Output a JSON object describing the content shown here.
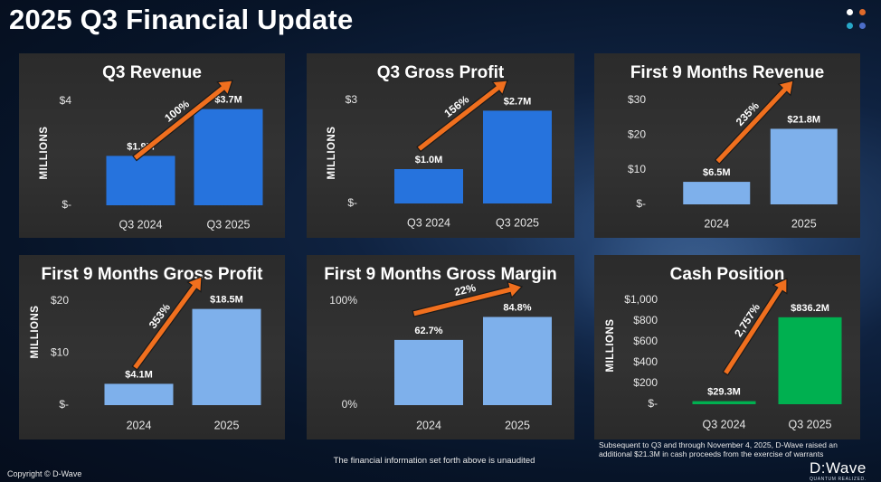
{
  "page_title": "2025 Q3 Financial Update",
  "footer_note": "The financial information set forth above is unaudited",
  "cash_note": "Subsequent to Q3 and through November 4, 2025, D-Wave raised an additional $21.3M in cash proceeds from the exercise of warrants",
  "copyright": "Copyright © D-Wave",
  "logo": {
    "main": "D:Wave",
    "tagline": "QUANTUM REALIZED."
  },
  "colors": {
    "dark_blue": "#2673DD",
    "light_blue": "#7EB0EB",
    "green": "#00B050",
    "arrow": "#F06F1E",
    "dots": [
      "#ffffff",
      "#e06a2a",
      "#27a7c8",
      "#4c6dc9",
      "#8fc3e6"
    ]
  },
  "chart_data": [
    {
      "type": "bar",
      "title": "Q3 Revenue",
      "ylabel": "MILLIONS",
      "categories": [
        "Q3 2024",
        "Q3 2025"
      ],
      "values": [
        1.9,
        3.7
      ],
      "data_labels": [
        "$1.9M",
        "$3.7M"
      ],
      "ylim": [
        0,
        4
      ],
      "y_ticks": [
        0,
        4
      ],
      "y_tick_labels": [
        "$-",
        "$4"
      ],
      "bar_color": "#2673DD",
      "growth_label": "100%"
    },
    {
      "type": "bar",
      "title": "Q3 Gross Profit",
      "ylabel": "MILLIONS",
      "categories": [
        "Q3 2024",
        "Q3 2025"
      ],
      "values": [
        1.0,
        2.7
      ],
      "data_labels": [
        "$1.0M",
        "$2.7M"
      ],
      "ylim": [
        0,
        3
      ],
      "y_ticks": [
        0,
        3
      ],
      "y_tick_labels": [
        "$-",
        "$3"
      ],
      "bar_color": "#2673DD",
      "growth_label": "156%"
    },
    {
      "type": "bar",
      "title": "First 9 Months Revenue",
      "ylabel": "",
      "categories": [
        "2024",
        "2025"
      ],
      "values": [
        6.5,
        21.8
      ],
      "data_labels": [
        "$6.5M",
        "$21.8M"
      ],
      "ylim": [
        0,
        30
      ],
      "y_ticks": [
        0,
        10,
        20,
        30
      ],
      "y_tick_labels": [
        "$-",
        "$10",
        "$20",
        "$30"
      ],
      "bar_color": "#7EB0EB",
      "growth_label": "235%"
    },
    {
      "type": "bar",
      "title": "First 9 Months Gross Profit",
      "ylabel": "MILLIONS",
      "categories": [
        "2024",
        "2025"
      ],
      "values": [
        4.1,
        18.5
      ],
      "data_labels": [
        "$4.1M",
        "$18.5M"
      ],
      "ylim": [
        0,
        20
      ],
      "y_ticks": [
        0,
        10,
        20
      ],
      "y_tick_labels": [
        "$-",
        "$10",
        "$20"
      ],
      "bar_color": "#7EB0EB",
      "growth_label": "353%"
    },
    {
      "type": "bar",
      "title": "First 9 Months Gross Margin",
      "ylabel": "",
      "categories": [
        "2024",
        "2025"
      ],
      "values": [
        62.7,
        84.8
      ],
      "data_labels": [
        "62.7%",
        "84.8%"
      ],
      "ylim": [
        0,
        100
      ],
      "y_ticks": [
        0,
        100
      ],
      "y_tick_labels": [
        "0%",
        "100%"
      ],
      "bar_color": "#7EB0EB",
      "growth_label": "22%"
    },
    {
      "type": "bar",
      "title": "Cash Position",
      "ylabel": "MILLIONS",
      "categories": [
        "Q3 2024",
        "Q3 2025"
      ],
      "values": [
        29.3,
        836.2
      ],
      "data_labels": [
        "$29.3M",
        "$836.2M"
      ],
      "ylim": [
        0,
        1000
      ],
      "y_ticks": [
        0,
        200,
        400,
        600,
        800,
        1000
      ],
      "y_tick_labels": [
        "$-",
        "$200",
        "$400",
        "$600",
        "$800",
        "$1,000"
      ],
      "bar_color": "#00B050",
      "growth_label": "2,757%"
    }
  ]
}
